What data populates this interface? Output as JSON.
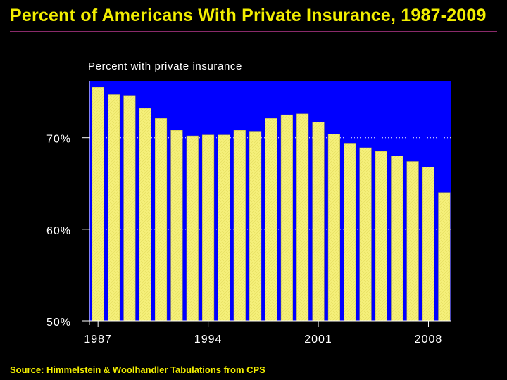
{
  "slide": {
    "title": "Percent of Americans With Private Insurance, 1987-2009",
    "source": "Source: Himmelstein & Woolhandler Tabulations from CPS"
  },
  "colors": {
    "background": "#000000",
    "title": "#f2ee00",
    "plot_area": "#0000ff",
    "bar_fill": "#f5f07a",
    "bar_stroke": "#c8c040",
    "axis_text": "#ffffff",
    "grid_line": "#ffffff",
    "title_rule": "#8a2a6a"
  },
  "chart_data": {
    "type": "bar",
    "title": "Percent with private insurance",
    "xlabel": "",
    "ylabel": "",
    "ylim": [
      50,
      76.2
    ],
    "y_ticks": [
      {
        "value": 50,
        "label": "50%"
      },
      {
        "value": 60,
        "label": "60%"
      },
      {
        "value": 70,
        "label": "70%"
      }
    ],
    "x_tick_labels": [
      {
        "category": "1987",
        "label": "1987"
      },
      {
        "category": "1994",
        "label": "1994"
      },
      {
        "category": "2001",
        "label": "2001"
      },
      {
        "category": "2008",
        "label": "2008"
      }
    ],
    "categories": [
      "1987",
      "1988",
      "1989",
      "1990",
      "1991",
      "1992",
      "1993",
      "1994",
      "1995",
      "1996",
      "1997",
      "1998",
      "1999",
      "2000",
      "2001",
      "2002",
      "2003",
      "2004",
      "2005",
      "2006",
      "2007",
      "2008",
      "2009"
    ],
    "values": [
      75.5,
      74.7,
      74.6,
      73.2,
      72.1,
      70.8,
      70.2,
      70.3,
      70.3,
      70.8,
      70.7,
      72.1,
      72.5,
      72.6,
      71.7,
      70.4,
      69.4,
      68.9,
      68.5,
      68.0,
      67.4,
      66.8,
      64.0
    ],
    "grid": "horizontal dotted lines at 60% and 70%",
    "legend": "none"
  }
}
